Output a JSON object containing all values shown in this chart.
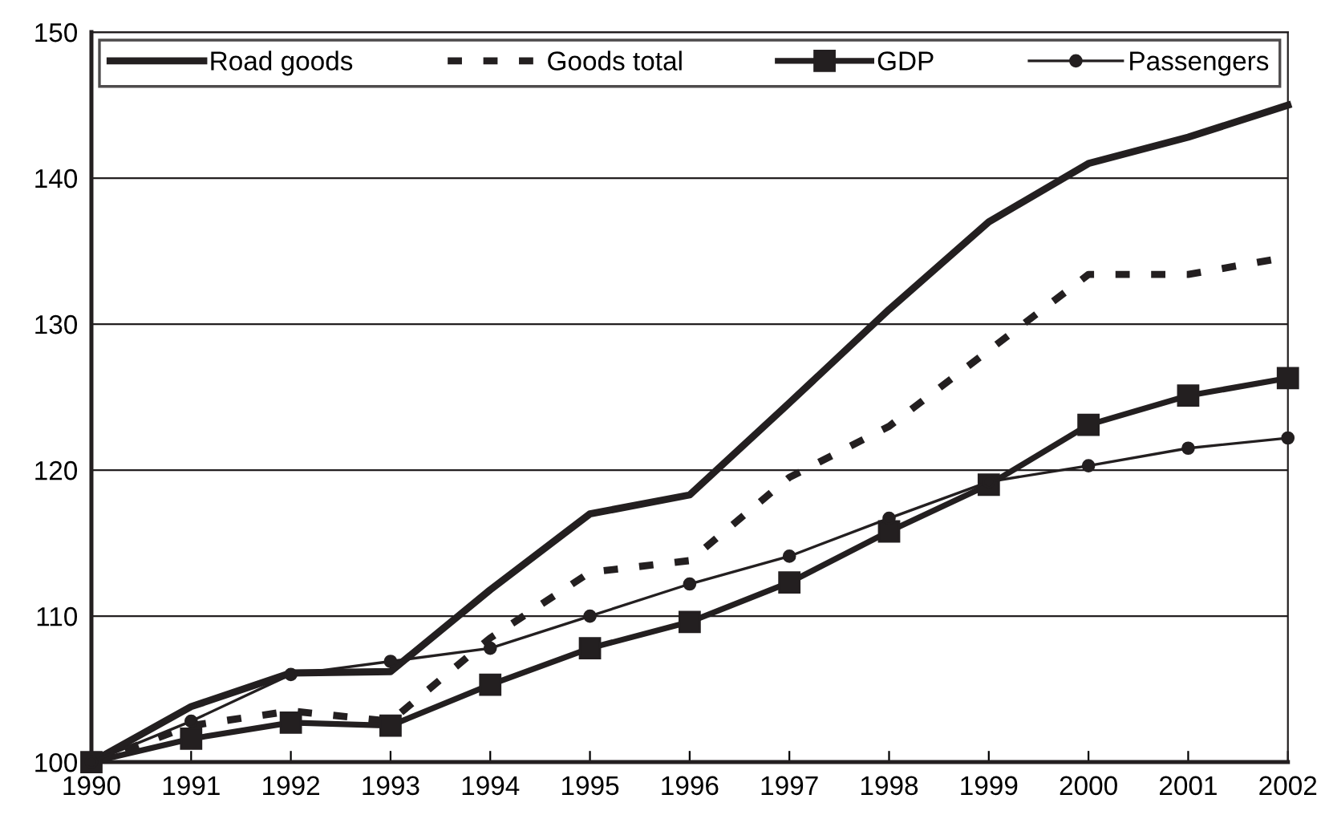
{
  "chart_data": {
    "type": "line",
    "x": [
      1990,
      1991,
      1992,
      1993,
      1994,
      1995,
      1996,
      1997,
      1998,
      1999,
      2000,
      2001,
      2002
    ],
    "xlim": [
      1990,
      2002
    ],
    "xticks": [
      1990,
      1991,
      1992,
      1993,
      1994,
      1995,
      1996,
      1997,
      1998,
      1999,
      2000,
      2001,
      2002
    ],
    "ylim": [
      100,
      150
    ],
    "yticks": [
      100,
      110,
      120,
      130,
      140,
      150
    ],
    "grid": "y",
    "legend": "top",
    "series": [
      {
        "name": "Road goods",
        "color": "#231f20",
        "marker": "none",
        "line_style": "solid",
        "values": [
          100,
          103.8,
          106.1,
          106.2,
          111.8,
          117,
          118.3,
          124.6,
          131,
          137,
          141,
          142.8,
          145
        ]
      },
      {
        "name": "Goods total",
        "color": "#231f20",
        "marker": "none",
        "line_style": "dashed",
        "values": [
          100,
          102.5,
          103.5,
          102.8,
          108.5,
          113,
          113.8,
          119.5,
          123,
          128.2,
          133.4,
          133.4,
          134.6
        ]
      },
      {
        "name": "GDP",
        "color": "#231f20",
        "marker": "square",
        "line_style": "solid",
        "values": [
          100,
          101.6,
          102.7,
          102.5,
          105.3,
          107.8,
          109.6,
          112.3,
          115.8,
          119,
          123.1,
          125.1,
          126.3
        ]
      },
      {
        "name": "Passengers",
        "color": "#231f20",
        "marker": "circle",
        "line_style": "solid",
        "values": [
          100,
          102.8,
          106,
          106.9,
          107.8,
          110,
          112.2,
          114.1,
          116.7,
          119.2,
          120.3,
          121.5,
          122.2
        ]
      }
    ]
  }
}
